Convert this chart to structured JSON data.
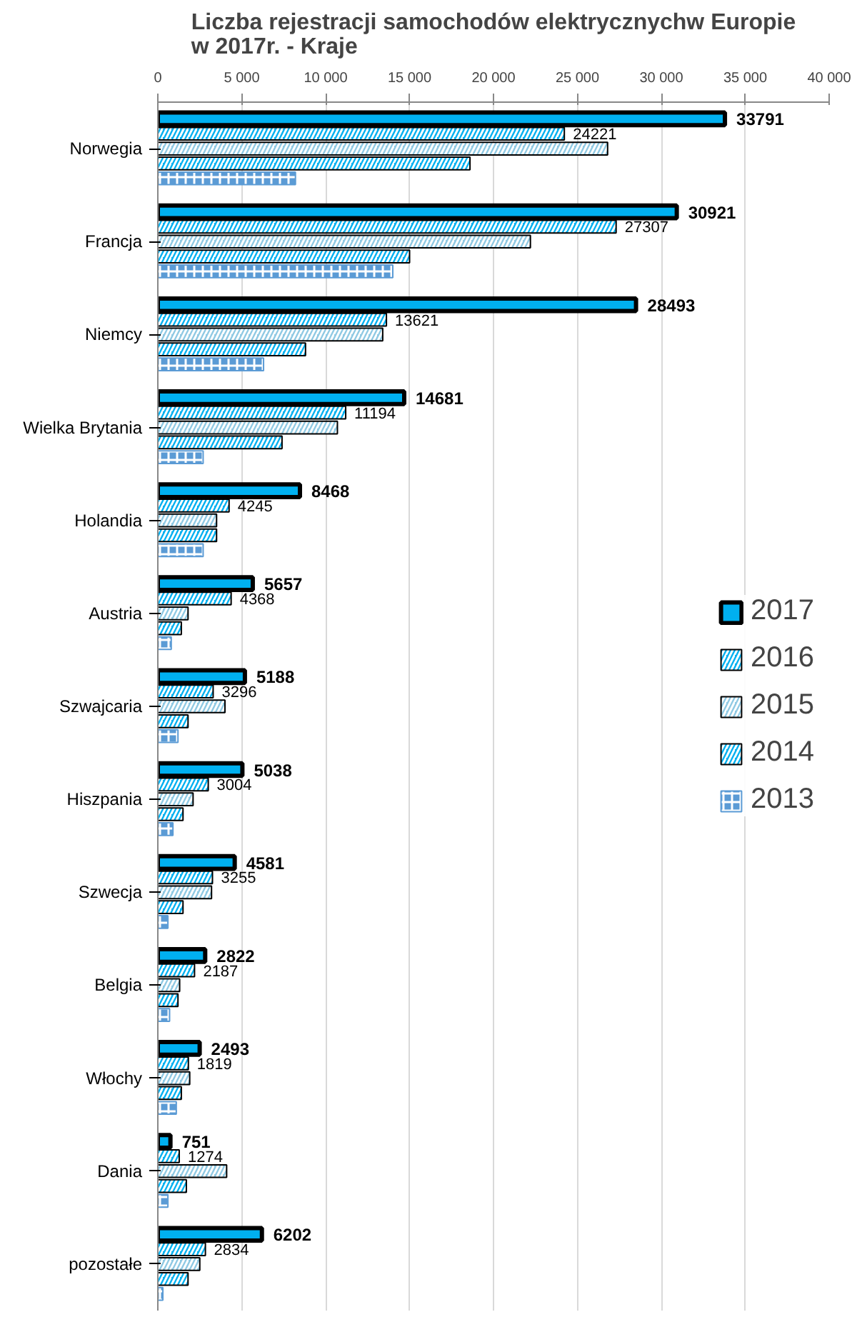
{
  "chart_data": {
    "type": "bar",
    "orientation": "horizontal",
    "title": "Liczba rejestracji samochodów elektrycznychw Europie\nw 2017r. - Kraje",
    "categories": [
      "Norwegia",
      "Francja",
      "Niemcy",
      "Wielka Brytania",
      "Holandia",
      "Austria",
      "Szwajcaria",
      "Hiszpania",
      "Szwecja",
      "Belgia",
      "Włochy",
      "Dania",
      "pozostałe"
    ],
    "series": [
      {
        "name": "2017",
        "color": "#00b0f0",
        "values": [
          33791,
          30921,
          28493,
          14681,
          8468,
          5657,
          5188,
          5038,
          4581,
          2822,
          2493,
          751,
          6202
        ],
        "value_labels": [
          "33791",
          "30921",
          "28493",
          "14681",
          "8468",
          "5657",
          "5188",
          "5038",
          "4581",
          "2822",
          "2493",
          "751",
          "6202"
        ]
      },
      {
        "name": "2016",
        "color": "#00b0f0",
        "values": [
          24221,
          27307,
          13621,
          11194,
          4245,
          4368,
          3296,
          3004,
          3255,
          2187,
          1819,
          1274,
          2834
        ],
        "value_labels": [
          "24221",
          "27307",
          "13621",
          "11194",
          "4245",
          "4368",
          "3296",
          "3004",
          "3255",
          "2187",
          "1819",
          "1274",
          "2834"
        ]
      },
      {
        "name": "2015",
        "color": "#8fc9e3",
        "values": [
          26800,
          22200,
          13400,
          10700,
          3500,
          1800,
          4000,
          2100,
          3200,
          1300,
          1900,
          4100,
          2500
        ]
      },
      {
        "name": "2014",
        "color": "#00b0f0",
        "values": [
          18600,
          15000,
          8800,
          7400,
          3500,
          1400,
          1800,
          1500,
          1500,
          1200,
          1400,
          1700,
          1800
        ]
      },
      {
        "name": "2013",
        "color": "#5b9bd5",
        "values": [
          8200,
          14000,
          6300,
          2700,
          2700,
          800,
          1200,
          900,
          600,
          700,
          1100,
          600,
          300
        ]
      }
    ],
    "xlim": [
      0,
      40000
    ],
    "xticks": [
      0,
      {
        "value": 5000,
        "label": "5 000"
      },
      {
        "value": 10000,
        "label": "10 000"
      },
      {
        "value": 15000,
        "label": "15 000"
      },
      {
        "value": 20000,
        "label": "20 000"
      },
      {
        "value": 25000,
        "label": "25 000"
      },
      {
        "value": 30000,
        "label": "30 000"
      },
      {
        "value": 35000,
        "label": "35 000"
      },
      {
        "value": 40000,
        "label": "40 000"
      }
    ],
    "grid": "x",
    "legend": "right"
  }
}
